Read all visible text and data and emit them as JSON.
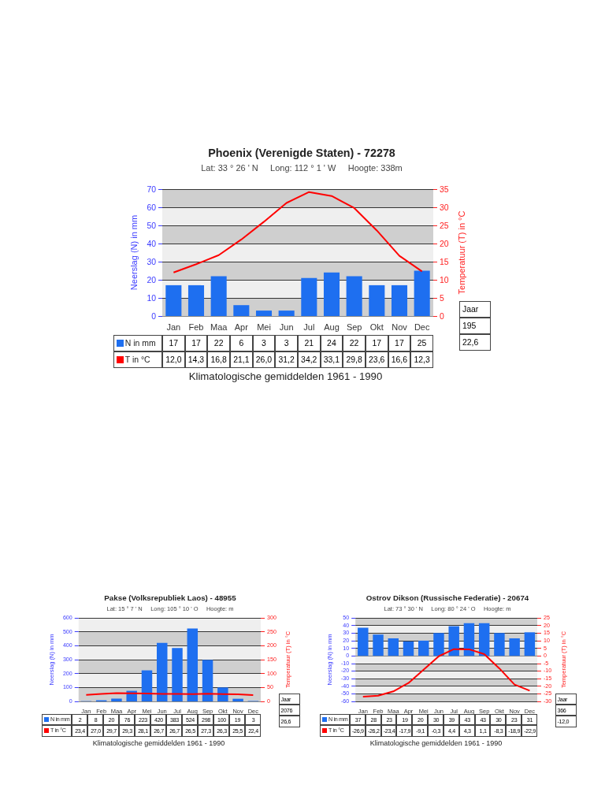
{
  "chart_data": [
    {
      "type": "bar",
      "title": "Phoenix (Verenigde Staten) - 72278",
      "subtitle": "Lat: 33 ° 26 ' N     Long: 112 ° 1 ' W     Hoogte: 338m",
      "ylabel": "Neerslag (N) in mm",
      "y2label": "Temperatuur (T) in °C",
      "categories": [
        "Jan",
        "Feb",
        "Maa",
        "Apr",
        "Mei",
        "Jun",
        "Jul",
        "Aug",
        "Sep",
        "Okt",
        "Nov",
        "Dec"
      ],
      "series": [
        {
          "name": "N in mm",
          "color": "#1e6ff0",
          "values": [
            17,
            17,
            22,
            6,
            3,
            3,
            21,
            24,
            22,
            17,
            17,
            25
          ],
          "value_labels": [
            "17",
            "17",
            "22",
            "6",
            "3",
            "3",
            "21",
            "24",
            "22",
            "17",
            "17",
            "25"
          ]
        },
        {
          "name": "T in °C",
          "type": "line",
          "axis": "y2",
          "color": "#ff0000",
          "values": [
            12.0,
            14.3,
            16.8,
            21.1,
            26.0,
            31.2,
            34.2,
            33.1,
            29.8,
            23.6,
            16.6,
            12.3
          ],
          "value_labels": [
            "12,0",
            "14,3",
            "16,8",
            "21,1",
            "26,0",
            "31,2",
            "34,2",
            "33,1",
            "29,8",
            "23,6",
            "16,6",
            "12,3"
          ]
        }
      ],
      "ylim": [
        0,
        70
      ],
      "yticks": [
        0,
        10,
        20,
        30,
        40,
        50,
        60,
        70
      ],
      "y2lim": [
        0,
        35
      ],
      "y2ticks": [
        0,
        5,
        10,
        15,
        20,
        25,
        30,
        35
      ],
      "grid": "y",
      "legend": "bottom",
      "annotations": [
        "Jaar",
        "195",
        "22,6",
        "Klimatologische gemiddelden 1961 - 1990"
      ]
    },
    {
      "type": "bar",
      "title": "Pakse (Volksrepubliek Laos) - 48955",
      "subtitle": "Lat: 15 ° 7 ' N     Long: 105 ° 10 ' O     Hoogte: m",
      "ylabel": "Neerslag (N) in mm",
      "y2label": "Temperatuur (T) in °C",
      "categories": [
        "Jan",
        "Feb",
        "Maa",
        "Apr",
        "Mei",
        "Jun",
        "Jul",
        "Aug",
        "Sep",
        "Okt",
        "Nov",
        "Dec"
      ],
      "series": [
        {
          "name": "N in mm",
          "color": "#1e6ff0",
          "values": [
            2,
            8,
            20,
            76,
            223,
            420,
            383,
            524,
            298,
            100,
            19,
            3
          ],
          "value_labels": [
            "2",
            "8",
            "20",
            "76",
            "223",
            "420",
            "383",
            "524",
            "298",
            "100",
            "19",
            "3"
          ]
        },
        {
          "name": "T in °C",
          "type": "line",
          "axis": "y2",
          "color": "#ff0000",
          "values": [
            23.4,
            27.0,
            29.7,
            29.3,
            28.1,
            26.7,
            26.7,
            26.5,
            27.3,
            26.3,
            25.5,
            22.4
          ],
          "value_labels": [
            "23,4",
            "27,0",
            "29,7",
            "29,3",
            "28,1",
            "26,7",
            "26,7",
            "26,5",
            "27,3",
            "26,3",
            "25,5",
            "22,4"
          ]
        }
      ],
      "ylim": [
        0,
        600
      ],
      "yticks": [
        0,
        100,
        200,
        300,
        400,
        500,
        600
      ],
      "y2lim": [
        0,
        300
      ],
      "y2ticks": [
        0,
        50,
        100,
        150,
        200,
        250,
        300
      ],
      "grid": "y",
      "legend": "bottom",
      "annotations": [
        "Jaar",
        "2076",
        "26,6",
        "Klimatologische gemiddelden 1961 - 1990"
      ]
    },
    {
      "type": "bar",
      "title": "Ostrov Dikson (Russische Federatie) - 20674",
      "subtitle": "Lat: 73 ° 30 ' N     Long: 80 ° 24 ' O     Hoogte: m",
      "ylabel": "Neerslag (N) in mm",
      "y2label": "Temperatuur (T) in °C",
      "categories": [
        "Jan",
        "Feb",
        "Maa",
        "Apr",
        "Mei",
        "Jun",
        "Jul",
        "Aug",
        "Sep",
        "Okt",
        "Nov",
        "Dec"
      ],
      "series": [
        {
          "name": "N in mm",
          "color": "#1e6ff0",
          "values": [
            37,
            28,
            23,
            19,
            20,
            30,
            39,
            43,
            43,
            30,
            23,
            31
          ],
          "value_labels": [
            "37",
            "28",
            "23",
            "19",
            "20",
            "30",
            "39",
            "43",
            "43",
            "30",
            "23",
            "31"
          ]
        },
        {
          "name": "T in °C",
          "type": "line",
          "axis": "y2",
          "color": "#ff0000",
          "values": [
            -26.9,
            -26.2,
            -23.4,
            -17.9,
            -9.1,
            -0.3,
            4.4,
            4.3,
            1.1,
            -8.3,
            -18.9,
            -22.9
          ],
          "value_labels": [
            "-26,9",
            "-26,2",
            "-23,4",
            "-17,9",
            "-9,1",
            "-0,3",
            "4,4",
            "4,3",
            "1,1",
            "-8,3",
            "-18,9",
            "-22,9"
          ]
        }
      ],
      "ylim": [
        -60,
        50
      ],
      "yticks": [
        -60,
        -50,
        -40,
        -30,
        -20,
        -10,
        0,
        10,
        20,
        30,
        40,
        50
      ],
      "y2lim": [
        -30,
        25
      ],
      "y2ticks": [
        -30,
        -25,
        -20,
        -15,
        -10,
        -5,
        0,
        5,
        10,
        15,
        20,
        25
      ],
      "grid": "y",
      "legend": "bottom",
      "annotations": [
        "Jaar",
        "366",
        "-12,0",
        "Klimatologische gemiddelden 1961 - 1990"
      ]
    }
  ]
}
